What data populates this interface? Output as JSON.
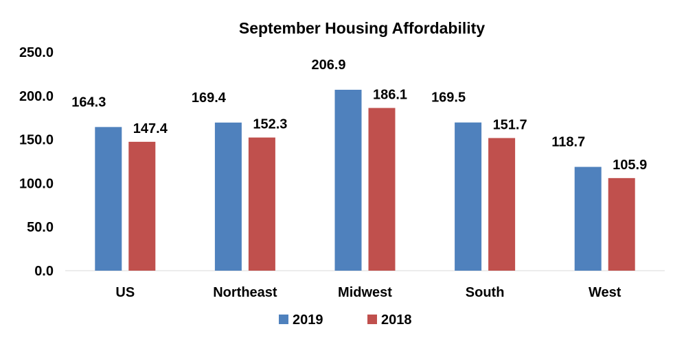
{
  "chart_data": {
    "type": "bar",
    "title": "September Housing Affordability",
    "categories": [
      "US",
      "Northeast",
      "Midwest",
      "South",
      "West"
    ],
    "series": [
      {
        "name": "2019",
        "color": "#4F81BD",
        "values": [
          164.3,
          169.4,
          206.9,
          169.5,
          118.7
        ],
        "labels": [
          "164.3",
          "169.4",
          "206.9",
          "169.5",
          "118.7"
        ]
      },
      {
        "name": "2018",
        "color": "#C0504D",
        "values": [
          147.4,
          152.3,
          186.1,
          151.7,
          105.9
        ],
        "labels": [
          "147.4",
          "152.3",
          "186.1",
          "151.7",
          "105.9"
        ]
      }
    ],
    "ylim": [
      0,
      250
    ],
    "yticks": [
      0,
      50,
      100,
      150,
      200,
      250
    ],
    "ytick_labels": [
      "0.0",
      "50.0",
      "100.0",
      "150.0",
      "200.0",
      "250.0"
    ],
    "grid": false,
    "legend_position": "bottom",
    "xlabel": "",
    "ylabel": ""
  }
}
